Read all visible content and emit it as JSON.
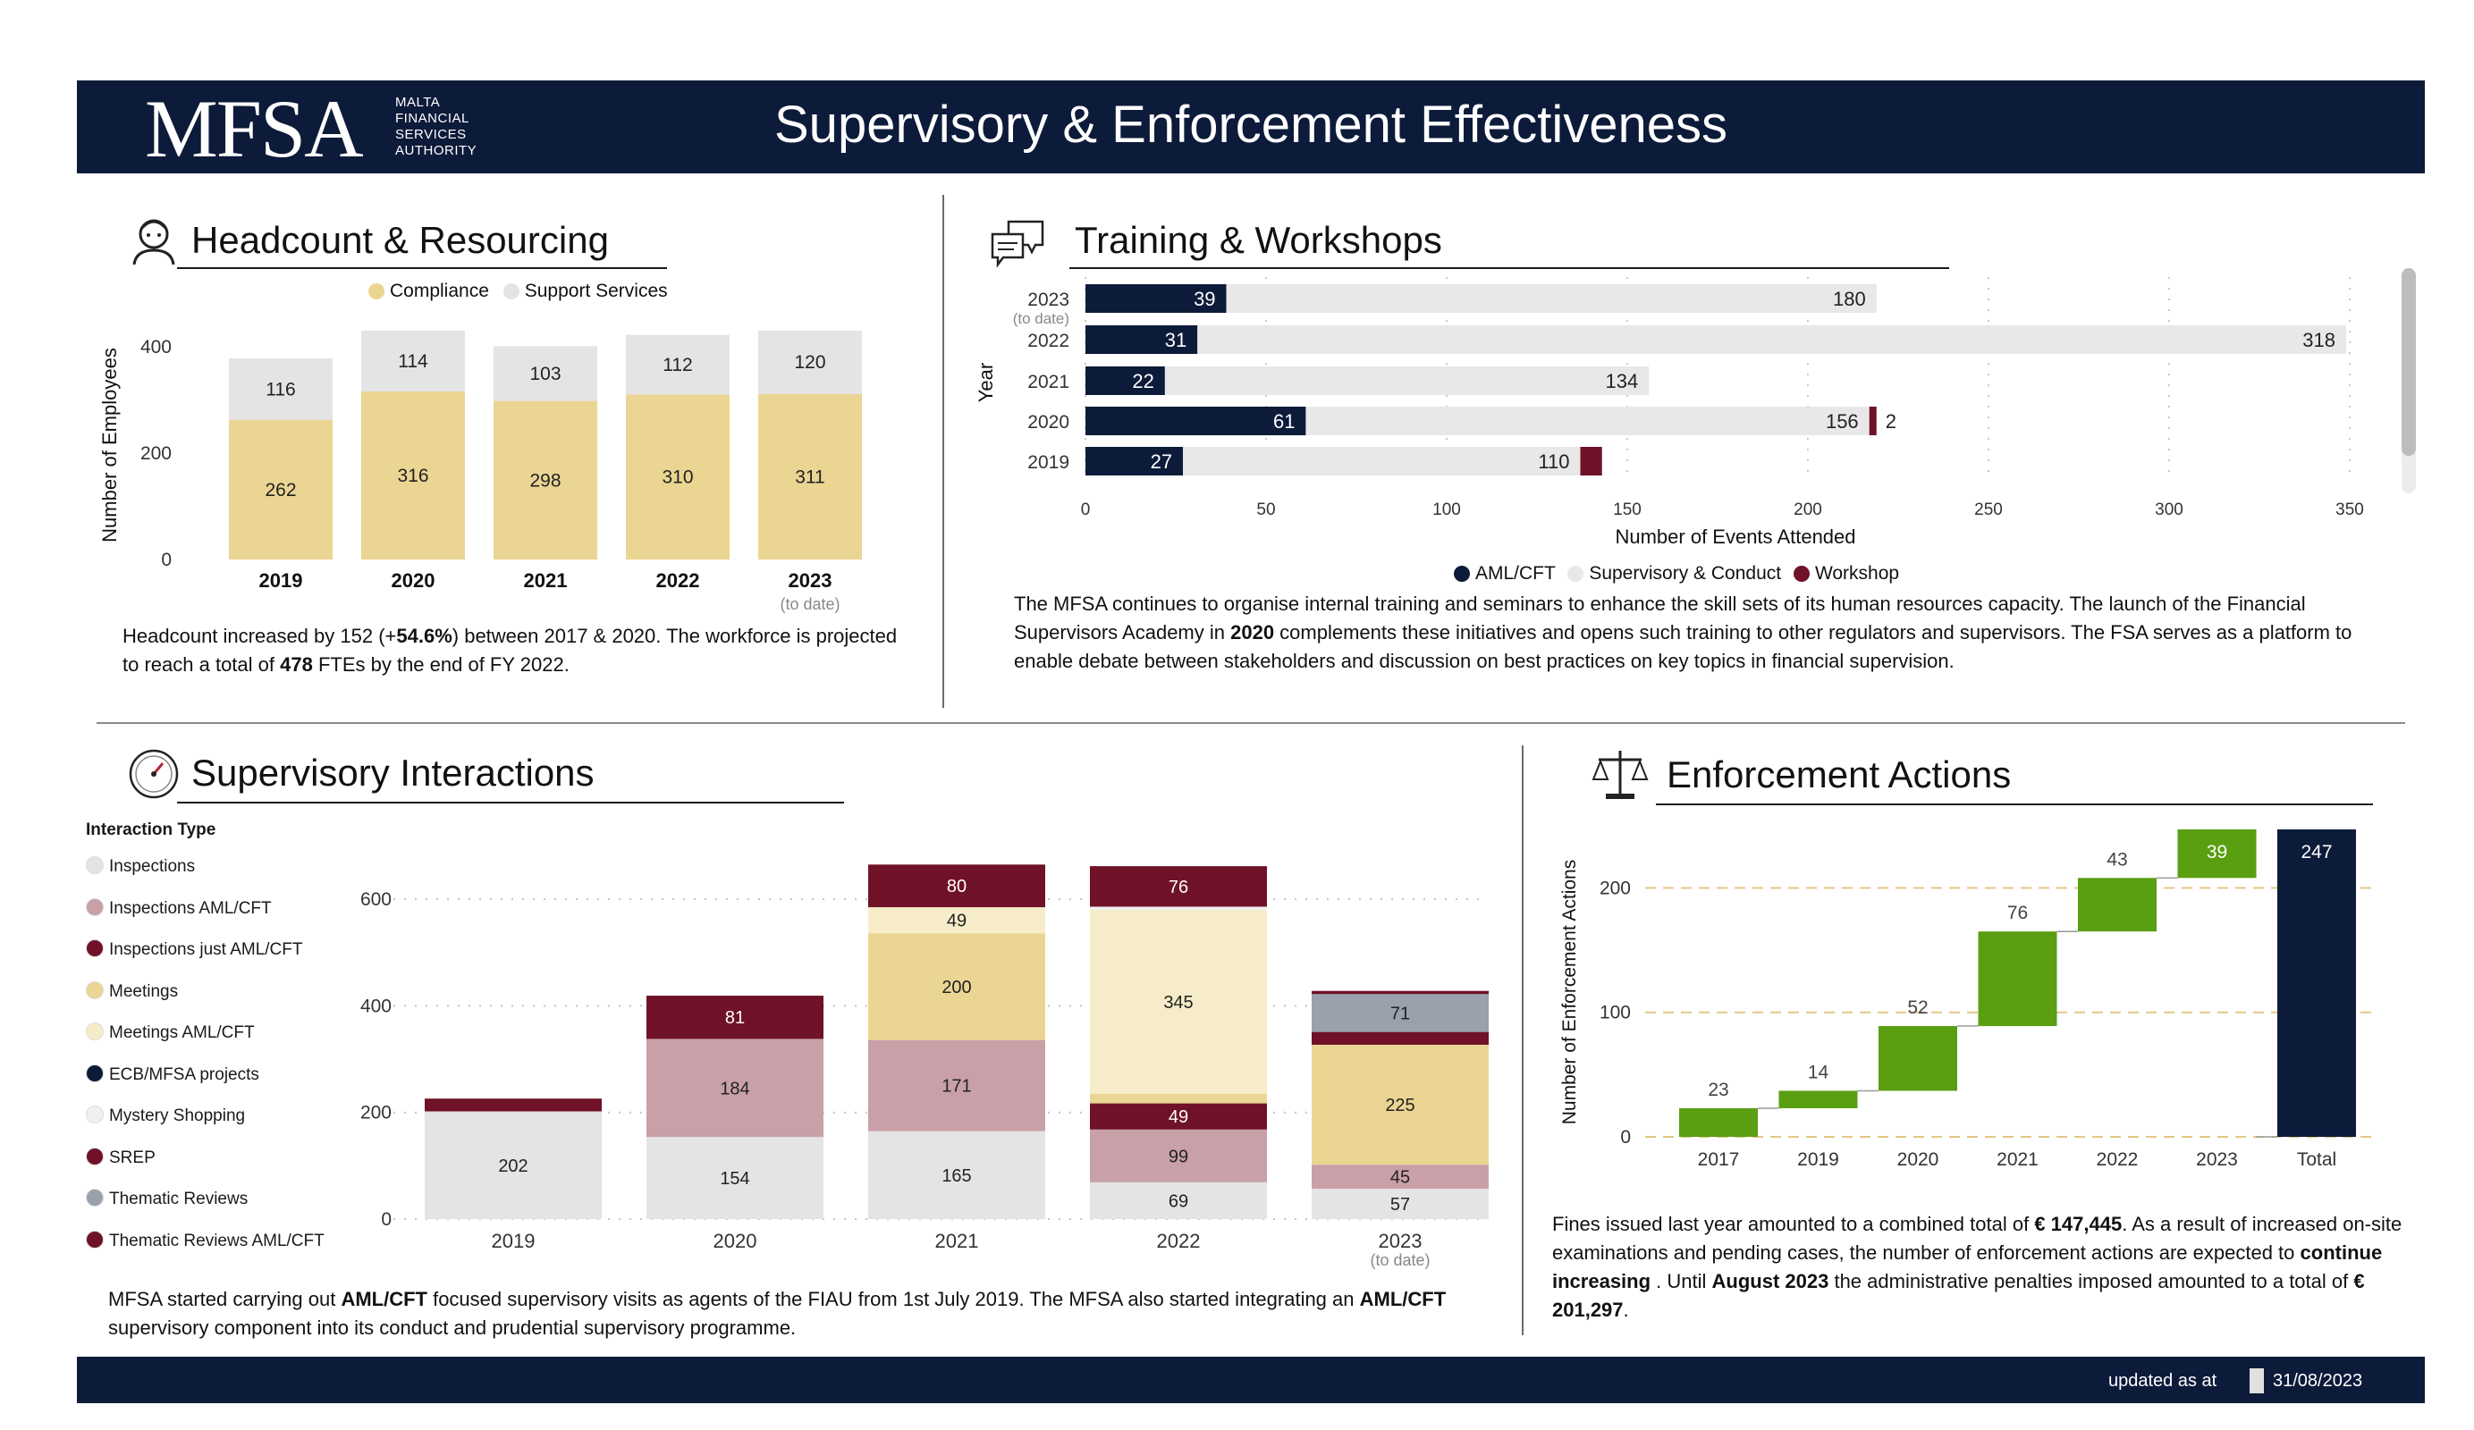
{
  "header": {
    "logo": "MFSA",
    "logo_sub": [
      "MALTA",
      "FINANCIAL",
      "SERVICES",
      "AUTHORITY"
    ],
    "title": "Supervisory & Enforcement Effectiveness"
  },
  "footer": {
    "label": "updated as at",
    "date": "31/08/2023"
  },
  "colors": {
    "navy": "#0d1b3a",
    "compliance": "#ebd592",
    "support": "#e4e4e4",
    "maroon": "#6f1227",
    "rose": "#c9a0a8",
    "cream": "#f6ecc9",
    "grey_blue": "#9aa1ad",
    "green": "#5a9e12"
  },
  "sections": {
    "headcount": {
      "title": "Headcount & Resourcing",
      "icon": "person-icon",
      "text": [
        "Headcount increased by 152 (+",
        "54.6%",
        ") between 2017 & 2020. The workforce is projected to reach a total of ",
        "478",
        " FTEs by the end of FY 2022."
      ]
    },
    "training": {
      "title": "Training & Workshops",
      "icon": "chat-bubbles-icon",
      "text": [
        "The MFSA continues to organise internal training and seminars to enhance the skill sets of its human resources capacity. The launch of the Financial Supervisors Academy in ",
        "2020",
        " complements these initiatives and opens such training to other regulators and supervisors. The FSA serves as a platform to enable debate between stakeholders and discussion on best practices on key topics in financial supervision."
      ]
    },
    "interactions": {
      "title": "Supervisory Interactions",
      "icon": "gauge-icon",
      "text": [
        "MFSA started carrying out ",
        "AML/CFT",
        " focused supervisory visits as agents of the FIAU from 1st July 2019. The MFSA also started integrating an ",
        "AML/CFT",
        " supervisory component into its conduct and prudential supervisory programme."
      ]
    },
    "enforcement": {
      "title": "Enforcement Actions",
      "icon": "scales-icon",
      "text": [
        "Fines issued last year amounted to a combined total of ",
        "€ 147,445",
        ". As a result of increased on-site examinations and pending cases, the number of enforcement actions are expected to ",
        "continue increasing",
        " . Until ",
        "August 2023",
        " the administrative penalties imposed amounted to a total of ",
        "€ 201,297",
        "."
      ]
    }
  },
  "chart_data": [
    {
      "id": "headcount",
      "type": "bar",
      "stacked": true,
      "categories": [
        "2019",
        "2020",
        "2021",
        "2022",
        "2023"
      ],
      "category_notes": [
        "",
        "",
        "",
        "",
        "(to date)"
      ],
      "series": [
        {
          "name": "Compliance",
          "color": "#ebd592",
          "values": [
            262,
            316,
            298,
            310,
            311
          ]
        },
        {
          "name": "Support Services",
          "color": "#e4e4e4",
          "values": [
            116,
            114,
            103,
            112,
            120
          ]
        }
      ],
      "ylabel": "Number of Employees",
      "yticks": [
        0,
        200,
        400
      ],
      "ylim": [
        0,
        430
      ],
      "legend": "top"
    },
    {
      "id": "training",
      "type": "bar",
      "orientation": "horizontal",
      "stacked": true,
      "categories": [
        "2023",
        "2022",
        "2021",
        "2020",
        "2019"
      ],
      "category_notes": [
        "(to date)",
        "",
        "",
        "",
        ""
      ],
      "series": [
        {
          "name": "AML/CFT",
          "color": "#0d1b3a",
          "values": [
            39,
            31,
            22,
            61,
            27
          ]
        },
        {
          "name": "Supervisory & Conduct",
          "color": "#e8e8e8",
          "values": [
            180,
            318,
            134,
            156,
            110
          ]
        },
        {
          "name": "Workshop",
          "color": "#6f1227",
          "values": [
            0,
            0,
            0,
            2,
            6
          ]
        }
      ],
      "workshop_labels": [
        "",
        "",
        "",
        "2",
        ""
      ],
      "xlabel": "Number of Events Attended",
      "ylabel": "Year",
      "xticks": [
        0,
        50,
        100,
        150,
        200,
        250,
        300,
        350
      ],
      "xlim": [
        0,
        350
      ],
      "legend": "bottom"
    },
    {
      "id": "interactions",
      "type": "bar",
      "stacked": true,
      "categories": [
        "2019",
        "2020",
        "2021",
        "2022",
        "2023"
      ],
      "category_notes": [
        "",
        "",
        "",
        "",
        "(to date)"
      ],
      "legend_title": "Interaction Type",
      "legend": "left",
      "series": [
        {
          "name": "Inspections",
          "color": "#e4e4e4",
          "values": [
            202,
            154,
            165,
            69,
            57
          ],
          "labels": [
            "202",
            "154",
            "165",
            "69",
            "57"
          ]
        },
        {
          "name": "Inspections  AML/CFT",
          "color": "#c9a0a8",
          "values": [
            0,
            184,
            171,
            99,
            45
          ],
          "labels": [
            "",
            "184",
            "171",
            "99",
            "45"
          ]
        },
        {
          "name": "Inspections just AML/CFT",
          "color": "#6f1227",
          "values": [
            0,
            0,
            0,
            49,
            0
          ],
          "labels": [
            "",
            "",
            "",
            "49",
            ""
          ]
        },
        {
          "name": "Meetings",
          "color": "#ebd592",
          "values": [
            0,
            0,
            200,
            18,
            225
          ],
          "labels": [
            "",
            "",
            "200",
            "",
            "225"
          ]
        },
        {
          "name": "Meetings  AML/CFT",
          "color": "#f6ecc9",
          "values": [
            0,
            0,
            49,
            345,
            0
          ],
          "labels": [
            "",
            "",
            "49",
            "345",
            ""
          ]
        },
        {
          "name": "ECB/MFSA projects",
          "color": "#0d1b3a",
          "values": [
            0,
            0,
            0,
            0,
            0
          ],
          "labels": [
            "",
            "",
            "",
            "",
            ""
          ]
        },
        {
          "name": "Mystery Shopping",
          "color": "#f0f0f0",
          "values": [
            0,
            0,
            0,
            6,
            0
          ],
          "labels": [
            "",
            "",
            "",
            "",
            ""
          ]
        },
        {
          "name": "SREP",
          "color": "#6f1227",
          "values": [
            24,
            81,
            80,
            0,
            24
          ],
          "labels": [
            "",
            "81",
            "80",
            "",
            ""
          ]
        },
        {
          "name": "Thematic Reviews",
          "color": "#9aa1ad",
          "values": [
            0,
            0,
            0,
            0,
            71
          ],
          "labels": [
            "",
            "",
            "",
            "",
            "71"
          ]
        },
        {
          "name": "Thematic Reviews   AML/CFT",
          "color": "#6f1227",
          "values": [
            0,
            0,
            0,
            76,
            6
          ],
          "labels": [
            "",
            "",
            "",
            "76",
            ""
          ]
        }
      ],
      "yticks": [
        0,
        200,
        400,
        600
      ],
      "ylim": [
        0,
        690
      ]
    },
    {
      "id": "enforcement",
      "type": "bar",
      "subtype": "waterfall",
      "categories": [
        "2017",
        "2019",
        "2020",
        "2021",
        "2022",
        "2023",
        "Total"
      ],
      "values": [
        23,
        14,
        52,
        76,
        43,
        39,
        247
      ],
      "colors": [
        "#5a9e12",
        "#5a9e12",
        "#5a9e12",
        "#5a9e12",
        "#5a9e12",
        "#5a9e12",
        "#0d1b3a"
      ],
      "ylabel": "Number of Enforcement Actions",
      "yticks": [
        0,
        100,
        200
      ],
      "ylim": [
        0,
        255
      ]
    }
  ]
}
